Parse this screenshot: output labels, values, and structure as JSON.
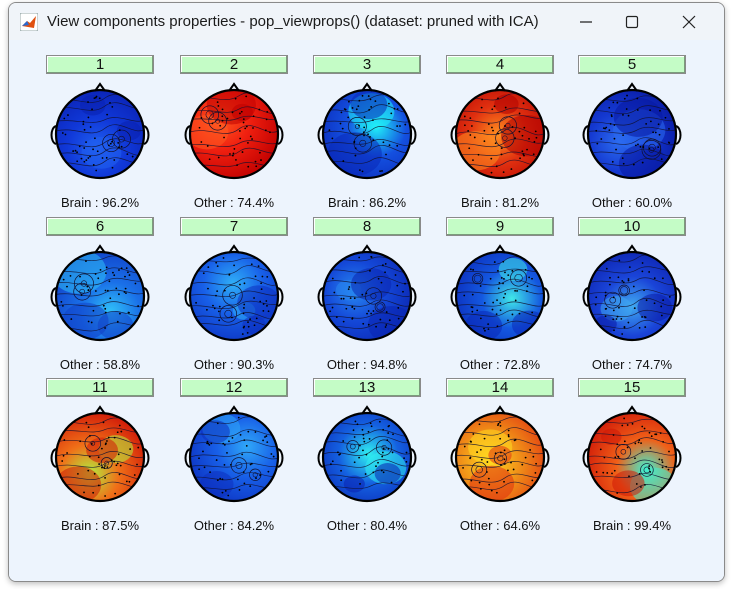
{
  "window": {
    "title": "View components properties - pop_viewprops() (dataset:  pruned with ICA)",
    "icon": "matlab-icon",
    "controls": [
      "minimize-icon",
      "maximize-icon",
      "close-icon"
    ]
  },
  "components": [
    {
      "number": "1",
      "label": "Brain : 96.2%",
      "colors": {
        "base": "#1038d8",
        "accent": "#0a20b0",
        "hot": "#2060f0"
      }
    },
    {
      "number": "2",
      "label": "Other : 74.4%",
      "colors": {
        "base": "#f02010",
        "accent": "#c00000",
        "hot": "#ff5a20"
      }
    },
    {
      "number": "3",
      "label": "Brain : 86.2%",
      "colors": {
        "base": "#1450e0",
        "accent": "#0a28b8",
        "hot": "#20f0f8"
      }
    },
    {
      "number": "4",
      "label": "Brain : 81.2%",
      "colors": {
        "base": "#e03010",
        "accent": "#b00000",
        "hot": "#ff9020"
      }
    },
    {
      "number": "5",
      "label": "Other : 60.0%",
      "colors": {
        "base": "#1438d0",
        "accent": "#0818a0",
        "hot": "#2c6cf0"
      }
    },
    {
      "number": "6",
      "label": "Other : 58.8%",
      "colors": {
        "base": "#1a70e8",
        "accent": "#1040c8",
        "hot": "#30c0f8"
      }
    },
    {
      "number": "7",
      "label": "Other : 90.3%",
      "colors": {
        "base": "#1860e8",
        "accent": "#0c30c0",
        "hot": "#30b0f8"
      }
    },
    {
      "number": "8",
      "label": "Other : 94.8%",
      "colors": {
        "base": "#1448d8",
        "accent": "#0a24b0",
        "hot": "#2888f0"
      }
    },
    {
      "number": "9",
      "label": "Other : 72.8%",
      "colors": {
        "base": "#1458e0",
        "accent": "#0a28b8",
        "hot": "#40e8e8"
      }
    },
    {
      "number": "10",
      "label": "Other : 74.7%",
      "colors": {
        "base": "#1a44d8",
        "accent": "#0a1ca8",
        "hot": "#40a8f0"
      }
    },
    {
      "number": "11",
      "label": "Brain : 87.5%",
      "colors": {
        "base": "#f07018",
        "accent": "#d01808",
        "hot": "#b0f040"
      }
    },
    {
      "number": "12",
      "label": "Other : 84.2%",
      "colors": {
        "base": "#1860e8",
        "accent": "#0c30c0",
        "hot": "#30a8f8"
      }
    },
    {
      "number": "13",
      "label": "Other : 80.4%",
      "colors": {
        "base": "#1460e0",
        "accent": "#0a20b0",
        "hot": "#30f0f0"
      }
    },
    {
      "number": "14",
      "label": "Other : 64.6%",
      "colors": {
        "base": "#f09018",
        "accent": "#e03010",
        "hot": "#ffd820"
      }
    },
    {
      "number": "15",
      "label": "Brain : 99.4%",
      "colors": {
        "base": "#f06018",
        "accent": "#d01808",
        "hot": "#40f0d0"
      }
    }
  ]
}
